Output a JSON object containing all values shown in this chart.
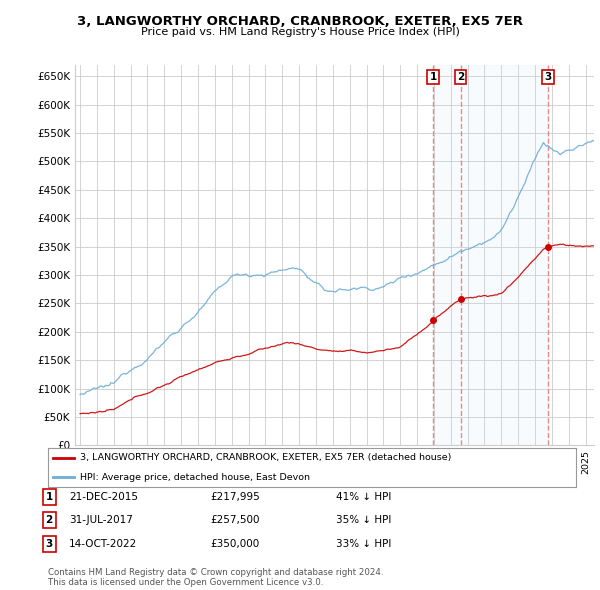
{
  "title": "3, LANGWORTHY ORCHARD, CRANBROOK, EXETER, EX5 7ER",
  "subtitle": "Price paid vs. HM Land Registry's House Price Index (HPI)",
  "ylim": [
    0,
    670000
  ],
  "yticks": [
    0,
    50000,
    100000,
    150000,
    200000,
    250000,
    300000,
    350000,
    400000,
    450000,
    500000,
    550000,
    600000,
    650000
  ],
  "ytick_labels": [
    "£0",
    "£50K",
    "£100K",
    "£150K",
    "£200K",
    "£250K",
    "£300K",
    "£350K",
    "£400K",
    "£450K",
    "£500K",
    "£550K",
    "£600K",
    "£650K"
  ],
  "transactions": [
    {
      "num": 1,
      "date": "21-DEC-2015",
      "price": 217995,
      "price_str": "£217,995",
      "hpi_pct": "41% ↓ HPI",
      "x_year": 2015.97
    },
    {
      "num": 2,
      "date": "31-JUL-2017",
      "price": 257500,
      "price_str": "£257,500",
      "hpi_pct": "35% ↓ HPI",
      "x_year": 2017.58
    },
    {
      "num": 3,
      "date": "14-OCT-2022",
      "price": 350000,
      "price_str": "£350,000",
      "hpi_pct": "33% ↓ HPI",
      "x_year": 2022.79
    }
  ],
  "red_line_color": "#cc0000",
  "blue_line_color": "#6baed6",
  "dashed_vline_color": "#e08080",
  "shade_color": "#d0e8f8",
  "background_color": "#ffffff",
  "grid_color": "#cccccc",
  "legend_label_red": "3, LANGWORTHY ORCHARD, CRANBROOK, EXETER, EX5 7ER (detached house)",
  "legend_label_blue": "HPI: Average price, detached house, East Devon",
  "footer": "Contains HM Land Registry data © Crown copyright and database right 2024.\nThis data is licensed under the Open Government Licence v3.0.",
  "xlim_start": 1994.7,
  "xlim_end": 2025.5,
  "n_points": 732
}
